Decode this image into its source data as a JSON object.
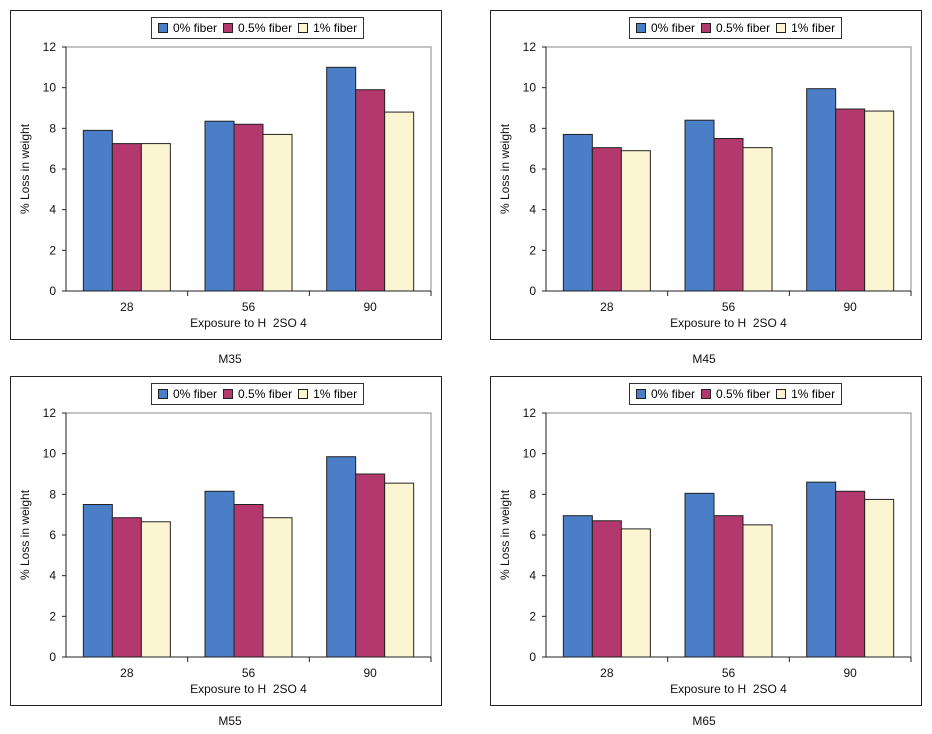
{
  "chart_data": [
    {
      "type": "bar",
      "caption": "M35",
      "categories": [
        "28",
        "56",
        "90"
      ],
      "series": [
        {
          "name": "0% fiber",
          "values": [
            7.9,
            8.35,
            11.0
          ]
        },
        {
          "name": "0.5% fiber",
          "values": [
            7.25,
            8.2,
            9.9
          ]
        },
        {
          "name": "1% fiber",
          "values": [
            7.25,
            7.7,
            8.8
          ]
        }
      ],
      "xlabel": "Exposure to H  2SO 4",
      "ylabel": "% Loss in weight",
      "ylim": [
        0,
        12
      ],
      "yticks": [
        "0",
        "2",
        "4",
        "6",
        "8",
        "10",
        "12"
      ],
      "legend": "top"
    },
    {
      "type": "bar",
      "caption": "M45",
      "categories": [
        "28",
        "56",
        "90"
      ],
      "series": [
        {
          "name": "0% fiber",
          "values": [
            7.7,
            8.4,
            9.95
          ]
        },
        {
          "name": "0.5% fiber",
          "values": [
            7.05,
            7.5,
            8.95
          ]
        },
        {
          "name": "1% fiber",
          "values": [
            6.9,
            7.05,
            8.85
          ]
        }
      ],
      "xlabel": "Exposure to H  2SO 4",
      "ylabel": "% Loss in weight",
      "ylim": [
        0,
        12
      ],
      "yticks": [
        "0",
        "2",
        "4",
        "6",
        "8",
        "10",
        "12"
      ],
      "legend": "top"
    },
    {
      "type": "bar",
      "caption": "M55",
      "categories": [
        "28",
        "56",
        "90"
      ],
      "series": [
        {
          "name": "0% fiber",
          "values": [
            7.5,
            8.15,
            9.85
          ]
        },
        {
          "name": "0.5% fiber",
          "values": [
            6.85,
            7.5,
            9.0
          ]
        },
        {
          "name": "1% fiber",
          "values": [
            6.65,
            6.85,
            8.55
          ]
        }
      ],
      "xlabel": "Exposure to H  2SO 4",
      "ylabel": "% Loss in weight",
      "ylim": [
        0,
        12
      ],
      "yticks": [
        "0",
        "2",
        "4",
        "6",
        "8",
        "10",
        "12"
      ],
      "legend": "top"
    },
    {
      "type": "bar",
      "caption": "M65",
      "categories": [
        "28",
        "56",
        "90"
      ],
      "series": [
        {
          "name": "0% fiber",
          "values": [
            6.95,
            8.05,
            8.6
          ]
        },
        {
          "name": "0.5% fiber",
          "values": [
            6.7,
            6.95,
            8.15
          ]
        },
        {
          "name": "1% fiber",
          "values": [
            6.3,
            6.5,
            7.75
          ]
        }
      ],
      "xlabel": "Exposure to H  2SO 4",
      "ylabel": "% Loss in weight",
      "ylim": [
        0,
        12
      ],
      "yticks": [
        "0",
        "2",
        "4",
        "6",
        "8",
        "10",
        "12"
      ],
      "legend": "top"
    }
  ],
  "colors": {
    "series": [
      "#4a7ec6",
      "#b3386e",
      "#fbf5d2"
    ],
    "stroke": "#222222"
  }
}
